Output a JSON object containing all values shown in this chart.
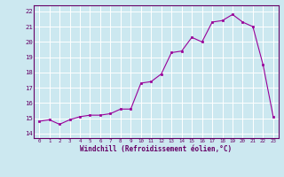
{
  "x": [
    0,
    1,
    2,
    3,
    4,
    5,
    6,
    7,
    8,
    9,
    10,
    11,
    12,
    13,
    14,
    15,
    16,
    17,
    18,
    19,
    20,
    21,
    22,
    23
  ],
  "y": [
    14.8,
    14.9,
    14.6,
    14.9,
    15.1,
    15.2,
    15.2,
    15.3,
    15.6,
    15.6,
    17.3,
    17.4,
    17.9,
    19.3,
    19.4,
    20.3,
    20.0,
    21.3,
    21.4,
    21.8,
    21.3,
    21.0,
    18.5,
    15.1
  ],
  "line_color": "#990099",
  "marker_color": "#990099",
  "bg_color": "#cce8f0",
  "grid_color": "#aad4e0",
  "xlabel": "Windchill (Refroidissement éolien,°C)",
  "ytick_values": [
    14,
    15,
    16,
    17,
    18,
    19,
    20,
    21,
    22
  ],
  "ylim": [
    13.7,
    22.4
  ],
  "xlim": [
    -0.5,
    23.5
  ],
  "xtick_labels": [
    "0",
    "1",
    "2",
    "3",
    "4",
    "5",
    "6",
    "7",
    "8",
    "9",
    "10",
    "11",
    "12",
    "13",
    "14",
    "15",
    "16",
    "17",
    "18",
    "19",
    "20",
    "21",
    "22",
    "23"
  ]
}
